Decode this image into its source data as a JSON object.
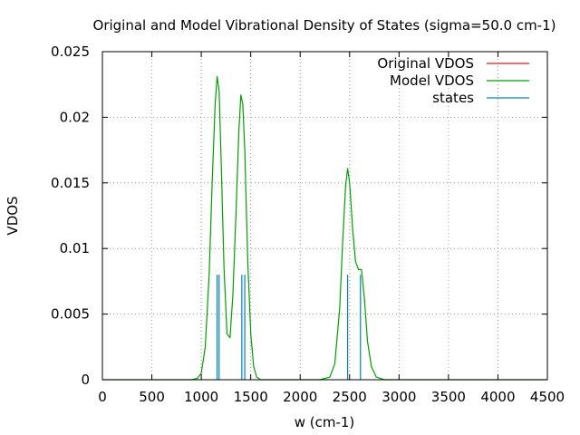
{
  "chart_data": {
    "type": "line",
    "title": "Original and Model Vibrational Density of States (sigma=50.0 cm-1)",
    "xlabel": "w (cm-1)",
    "ylabel": "VDOS",
    "xlim": [
      0,
      4500
    ],
    "ylim": [
      0,
      0.025
    ],
    "x_ticks": [
      0,
      500,
      1000,
      1500,
      2000,
      2500,
      3000,
      3500,
      4000,
      4500
    ],
    "y_ticks": [
      0,
      0.005,
      0.01,
      0.015,
      0.02,
      0.025
    ],
    "x_tick_labels": [
      "0",
      "500",
      "1000",
      "1500",
      "2000",
      "2500",
      "3000",
      "3500",
      "4000",
      "4500"
    ],
    "y_tick_labels": [
      "0",
      "0.005",
      "0.01",
      "0.015",
      "0.02",
      "0.025"
    ],
    "grid": true,
    "legend_position": "top-right",
    "series": [
      {
        "name": "Original VDOS",
        "kind": "line",
        "color": "#e41a1c",
        "x": [],
        "y": []
      },
      {
        "name": "Model VDOS",
        "kind": "line",
        "color": "#00a000",
        "x": [
          0,
          900,
          960,
          1000,
          1040,
          1080,
          1110,
          1140,
          1160,
          1180,
          1200,
          1230,
          1260,
          1290,
          1320,
          1350,
          1380,
          1400,
          1420,
          1440,
          1470,
          1500,
          1530,
          1560,
          1600,
          1700,
          2200,
          2300,
          2350,
          2400,
          2430,
          2460,
          2480,
          2500,
          2530,
          2560,
          2590,
          2620,
          2650,
          2680,
          2720,
          2770,
          2850,
          4500
        ],
        "y": [
          0,
          0,
          0.0001,
          0.0005,
          0.0025,
          0.008,
          0.015,
          0.021,
          0.0231,
          0.022,
          0.017,
          0.0085,
          0.0035,
          0.0032,
          0.0065,
          0.0125,
          0.019,
          0.0217,
          0.021,
          0.0175,
          0.009,
          0.0035,
          0.001,
          0.0002,
          0,
          0,
          0,
          0.0002,
          0.0012,
          0.0055,
          0.0105,
          0.0148,
          0.0161,
          0.015,
          0.0115,
          0.009,
          0.0084,
          0.0084,
          0.0062,
          0.003,
          0.001,
          0.0002,
          0,
          0
        ]
      },
      {
        "name": "states",
        "kind": "impulse",
        "color": "#0080c0",
        "x": [
          1160,
          1180,
          1410,
          1440,
          2480,
          2610
        ],
        "y": [
          0.008,
          0.008,
          0.008,
          0.008,
          0.008,
          0.008
        ]
      }
    ]
  }
}
